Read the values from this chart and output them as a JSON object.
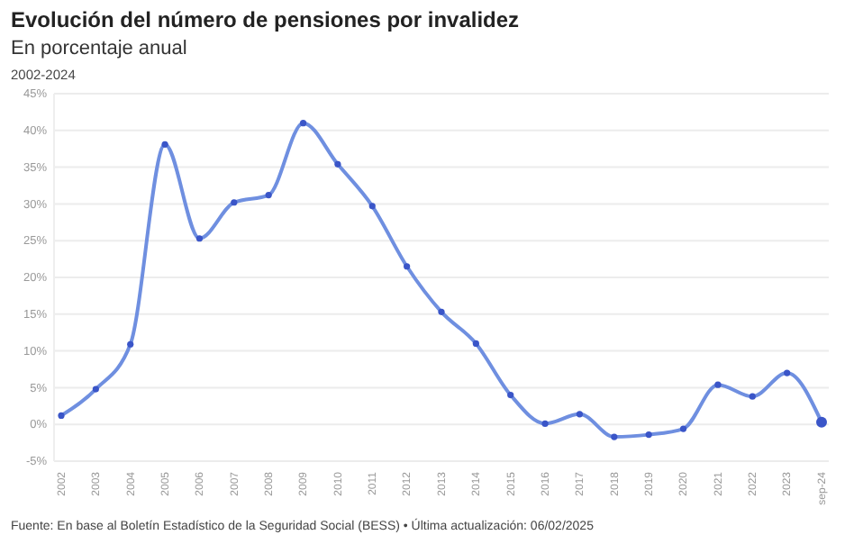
{
  "chart_data": {
    "type": "line",
    "title": "Evolución del número de pensiones por invalidez",
    "subtitle": "En porcentaje anual",
    "annotations": [
      "2002-2024",
      "Fuente: En base al Boletín Estadístico de la Seguridad Social (BESS) • Última actualización: 06/02/2025"
    ],
    "categories": [
      "2002",
      "2003",
      "2004",
      "2005",
      "2006",
      "2007",
      "2008",
      "2009",
      "2010",
      "2011",
      "2012",
      "2013",
      "2014",
      "2015",
      "2016",
      "2017",
      "2018",
      "2019",
      "2020",
      "2021",
      "2022",
      "2023",
      "sep-24"
    ],
    "series": [
      {
        "color": "#6f8fe0",
        "values": [
          1.2,
          4.8,
          10.9,
          38.1,
          25.3,
          30.2,
          31.2,
          41.0,
          35.4,
          29.7,
          21.5,
          15.3,
          11.0,
          4.0,
          0.1,
          1.4,
          -1.7,
          -1.4,
          -0.6,
          5.4,
          3.8,
          7.0,
          0.3
        ]
      }
    ],
    "ylim": [
      -5,
      45
    ],
    "yticks": [
      {
        "value": -5,
        "label": "-5%"
      },
      {
        "value": 0,
        "label": "0%"
      },
      {
        "value": 5,
        "label": "5%"
      },
      {
        "value": 10,
        "label": "10%"
      },
      {
        "value": 15,
        "label": "15%"
      },
      {
        "value": 20,
        "label": "20%"
      },
      {
        "value": 25,
        "label": "25%"
      },
      {
        "value": 30,
        "label": "30%"
      },
      {
        "value": 35,
        "label": "35%"
      },
      {
        "value": 40,
        "label": "40%"
      },
      {
        "value": 45,
        "label": "45%"
      }
    ],
    "grid": "y",
    "marker": "circle",
    "line_style": "solid"
  }
}
